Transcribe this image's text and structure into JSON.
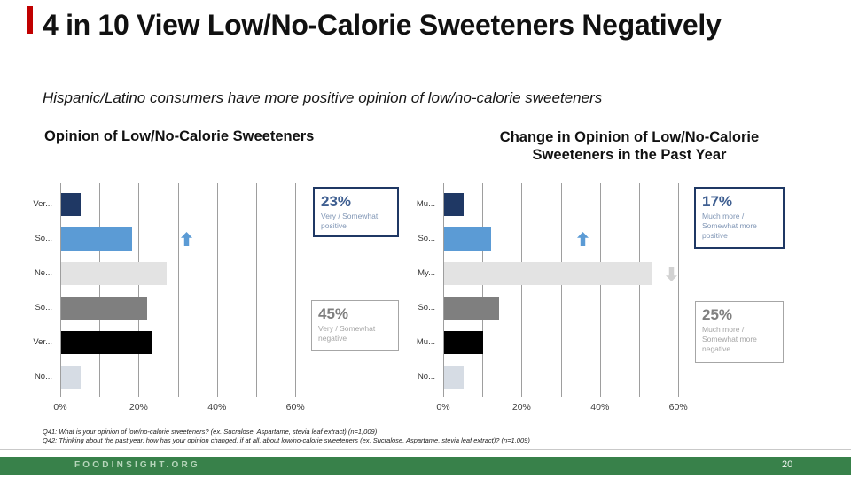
{
  "slide": {
    "title": "4 in 10 View Low/No-Calorie Sweeteners Negatively",
    "subtitle": "Hispanic/Latino consumers have more positive opinion of low/no-calorie sweeteners",
    "accent_color": "#C00000",
    "footer": {
      "brand": "FOODINSIGHT.ORG",
      "page_number": "20",
      "bar_color": "#38814A"
    }
  },
  "footnotes": [
    "Q41: What is your opinion of low/no-calorie sweeteners? (ex. Sucralose, Aspartame, stevia leaf extract) (n=1,009)",
    "Q42: Thinking about the past year, how has your opinion changed, if at all, about low/no-calorie sweeteners (ex. Sucralose, Aspartame, stevia leaf extract)? (n=1,009)"
  ],
  "chart_data": [
    {
      "type": "bar",
      "orientation": "horizontal",
      "title": "Opinion of Low/No-Calorie Sweeteners",
      "categories": [
        "Ver...",
        "So...",
        "Ne...",
        "So...",
        "Ver...",
        "No..."
      ],
      "values": [
        5,
        18,
        27,
        22,
        23,
        5
      ],
      "unit": "%",
      "xlim": [
        0,
        70
      ],
      "x_ticks": [
        "0%",
        "20%",
        "40%",
        "60%"
      ],
      "grid": "vertical lines every 10%",
      "bar_colors": [
        "#1F3864",
        "#5B9BD5",
        "#E3E3E3",
        "#7F7F7F",
        "#000000",
        "#D6DCE4"
      ],
      "callouts": [
        {
          "value": "23%",
          "label": "Very / Somewhat positive",
          "tone": "positive"
        },
        {
          "value": "45%",
          "label": "Very / Somewhat negative",
          "tone": "negative"
        }
      ],
      "annotations": [
        {
          "icon": "up-arrow",
          "color": "#5B9BD5",
          "row": "So..."
        }
      ]
    },
    {
      "type": "bar",
      "orientation": "horizontal",
      "title": "Change in Opinion of Low/No-Calorie Sweeteners in the Past Year",
      "categories": [
        "Mu...",
        "So...",
        "My...",
        "So...",
        "Mu...",
        "No..."
      ],
      "values": [
        5,
        12,
        53,
        14,
        10,
        5
      ],
      "unit": "%",
      "xlim": [
        0,
        70
      ],
      "x_ticks": [
        "0%",
        "20%",
        "40%",
        "60%"
      ],
      "grid": "vertical lines every 10%",
      "bar_colors": [
        "#1F3864",
        "#5B9BD5",
        "#E3E3E3",
        "#7F7F7F",
        "#000000",
        "#D6DCE4"
      ],
      "callouts": [
        {
          "value": "17%",
          "label": "Much more / Somewhat more positive",
          "tone": "positive"
        },
        {
          "value": "25%",
          "label": "Much more / Somewhat more negative",
          "tone": "negative"
        }
      ],
      "annotations": [
        {
          "icon": "up-arrow",
          "color": "#5B9BD5",
          "row": "So..."
        },
        {
          "icon": "down-arrow",
          "color": "#D2D2D2",
          "row": "My..."
        }
      ]
    }
  ]
}
